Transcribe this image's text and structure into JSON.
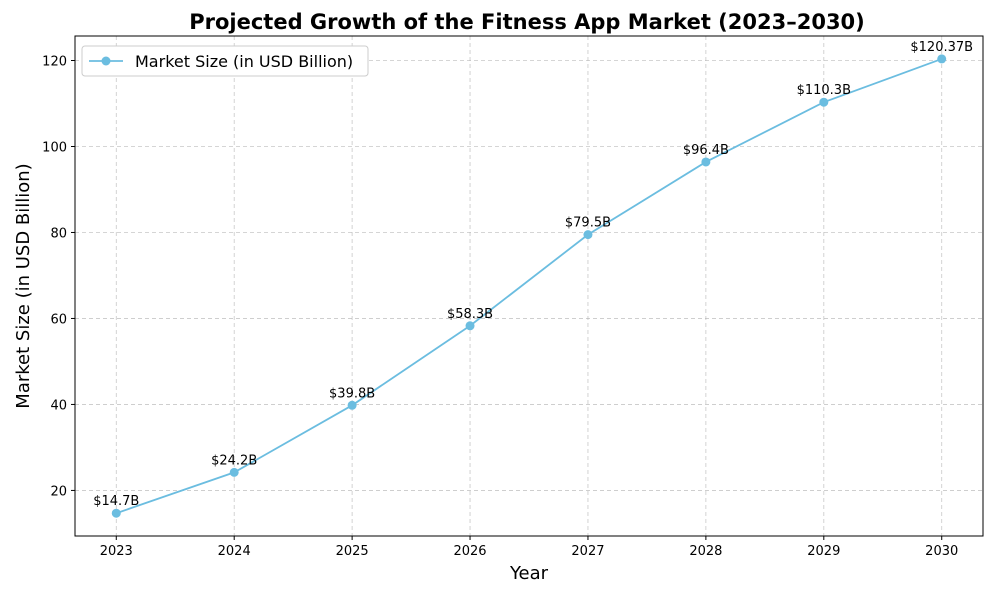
{
  "chart_data": {
    "type": "line",
    "title": "Projected Growth of the Fitness App Market (2023–2030)",
    "xlabel": "Year",
    "ylabel": "Market Size (in USD Billion)",
    "x": [
      2023,
      2024,
      2025,
      2026,
      2027,
      2028,
      2029,
      2030
    ],
    "x_tick_labels": [
      "2023",
      "2024",
      "2025",
      "2026",
      "2027",
      "2028",
      "2029",
      "2030"
    ],
    "y_ticks": [
      20,
      40,
      60,
      80,
      100,
      120
    ],
    "y_tick_labels": [
      "20",
      "40",
      "60",
      "80",
      "100",
      "120"
    ],
    "ylim": [
      9.4,
      125.7
    ],
    "xlim": [
      2022.65,
      2030.35
    ],
    "grid": true,
    "legend_position": "top-left",
    "series": [
      {
        "name": "Market Size (in USD Billion)",
        "color": "#6bbde0",
        "marker": "circle",
        "values": [
          14.7,
          24.2,
          39.8,
          58.3,
          79.5,
          96.4,
          110.3,
          120.37
        ],
        "data_labels": [
          "$14.7B",
          "$24.2B",
          "$39.8B",
          "$58.3B",
          "$79.5B",
          "$96.4B",
          "$110.3B",
          "$120.37B"
        ]
      }
    ]
  }
}
